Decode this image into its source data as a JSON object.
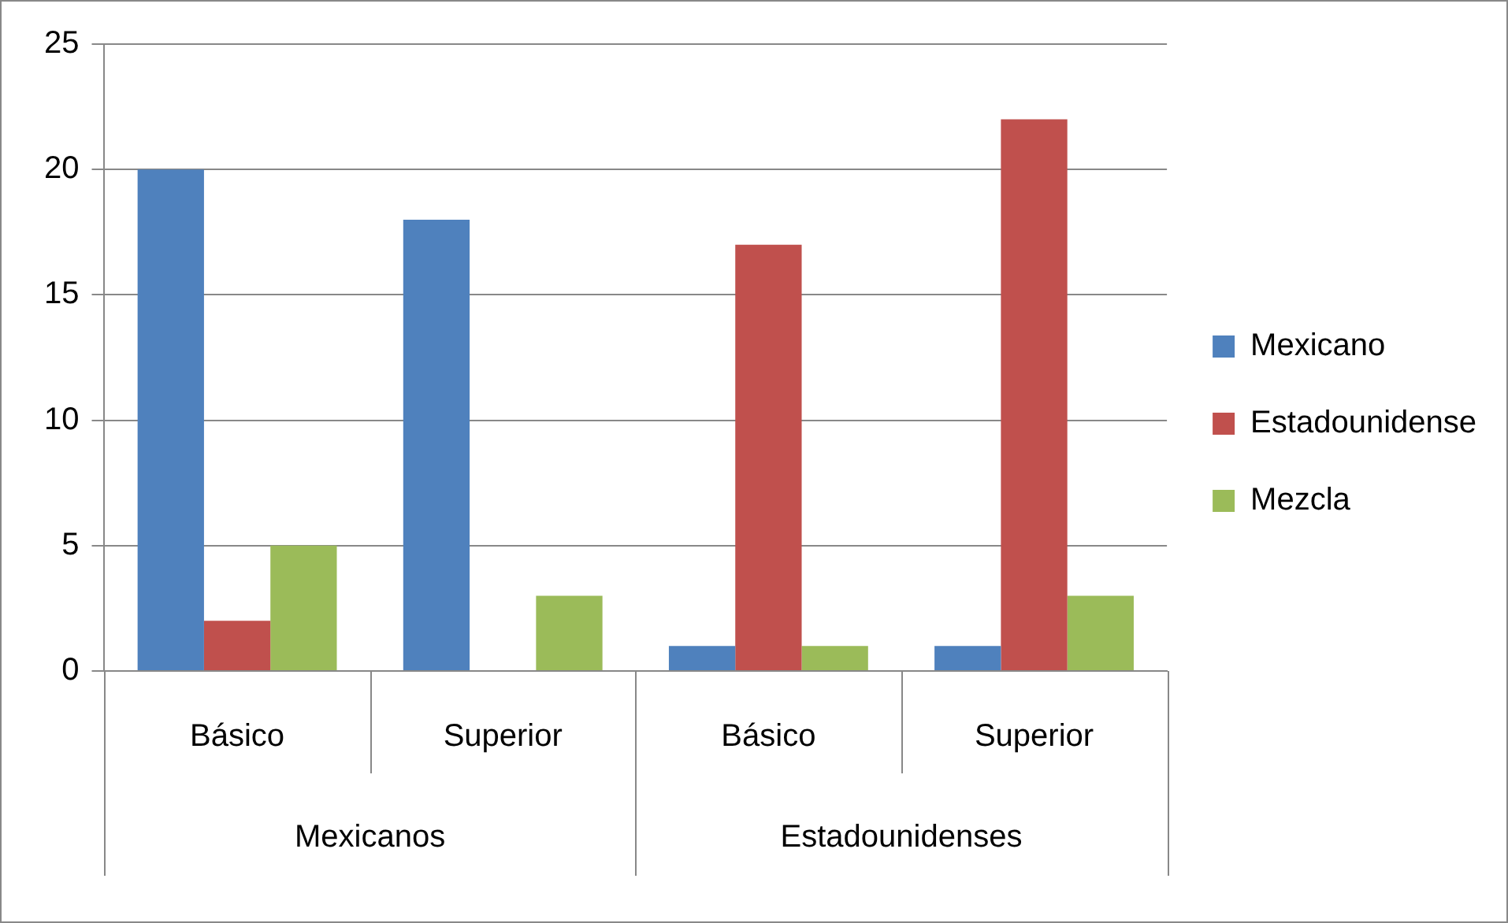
{
  "chart_data": {
    "type": "bar",
    "categories": [
      "Básico",
      "Superior",
      "Básico",
      "Superior"
    ],
    "series": [
      {
        "name": "Mexicano",
        "color": "#4f81bd",
        "values": [
          20,
          18,
          1,
          1
        ]
      },
      {
        "name": "Estadounidense",
        "color": "#c0504d",
        "values": [
          2,
          0,
          17,
          22
        ]
      },
      {
        "name": "Mezcla",
        "color": "#9bbb59",
        "values": [
          5,
          3,
          1,
          3
        ]
      }
    ],
    "ylim": [
      0,
      25
    ],
    "yticks": [
      0,
      5,
      10,
      15,
      20,
      25
    ],
    "grid": "y",
    "legend": "right",
    "annotations": [
      "Mexicanos",
      "Estadounidenses"
    ]
  }
}
